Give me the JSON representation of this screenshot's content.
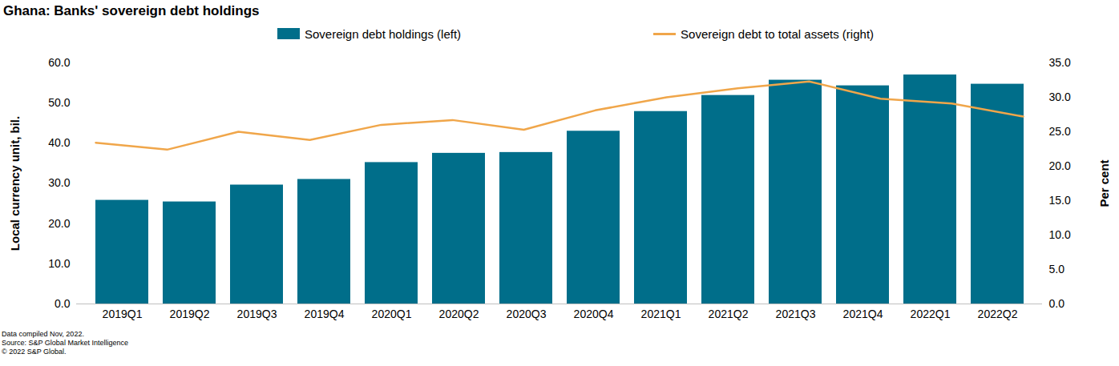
{
  "chart_data": {
    "type": "bar",
    "title": "Ghana: Banks' sovereign debt holdings",
    "categories": [
      "2019Q1",
      "2019Q2",
      "2019Q3",
      "2019Q4",
      "2020Q1",
      "2020Q2",
      "2020Q3",
      "2020Q4",
      "2021Q1",
      "2021Q2",
      "2021Q3",
      "2021Q4",
      "2022Q1",
      "2022Q2"
    ],
    "series": [
      {
        "name": "Sovereign debt holdings (left)",
        "type": "bar",
        "color": "#006e8a",
        "values": [
          25.8,
          25.4,
          29.6,
          31.0,
          35.2,
          37.5,
          37.7,
          43.0,
          47.9,
          51.9,
          55.7,
          54.3,
          57.0,
          54.7
        ]
      },
      {
        "name": "Sovereign debt to total assets (right)",
        "type": "line",
        "axis": "y2",
        "color": "#f0a64a",
        "values": [
          23.4,
          22.4,
          25.0,
          23.8,
          26.0,
          26.7,
          25.3,
          28.1,
          30.0,
          31.3,
          32.3,
          29.8,
          29.1,
          27.2
        ]
      }
    ],
    "ylabel": "Local currency unit, bil.",
    "y2label": "Per cent",
    "ylim": [
      0,
      60
    ],
    "yticks": [
      {
        "value": 0,
        "label": "0.0"
      },
      {
        "value": 10,
        "label": "10.0"
      },
      {
        "value": 20,
        "label": "20.0"
      },
      {
        "value": 30,
        "label": "30.0"
      },
      {
        "value": 40,
        "label": "40.0"
      },
      {
        "value": 50,
        "label": "50.0"
      },
      {
        "value": 60,
        "label": "60.0"
      }
    ],
    "y2lim": [
      0,
      35
    ],
    "y2ticks": [
      {
        "value": 0,
        "label": "0.0"
      },
      {
        "value": 5,
        "label": "5.0"
      },
      {
        "value": 10,
        "label": "10.0"
      },
      {
        "value": 15,
        "label": "15.0"
      },
      {
        "value": 20,
        "label": "20.0"
      },
      {
        "value": 25,
        "label": "25.0"
      },
      {
        "value": 30,
        "label": "30.0"
      },
      {
        "value": 35,
        "label": "35.0"
      }
    ],
    "legend": "top",
    "grid": false,
    "notes": [
      "Data compiled Nov, 2022.",
      "Source: S&P Global Market Intelligence",
      "© 2022 S&P Global."
    ]
  }
}
